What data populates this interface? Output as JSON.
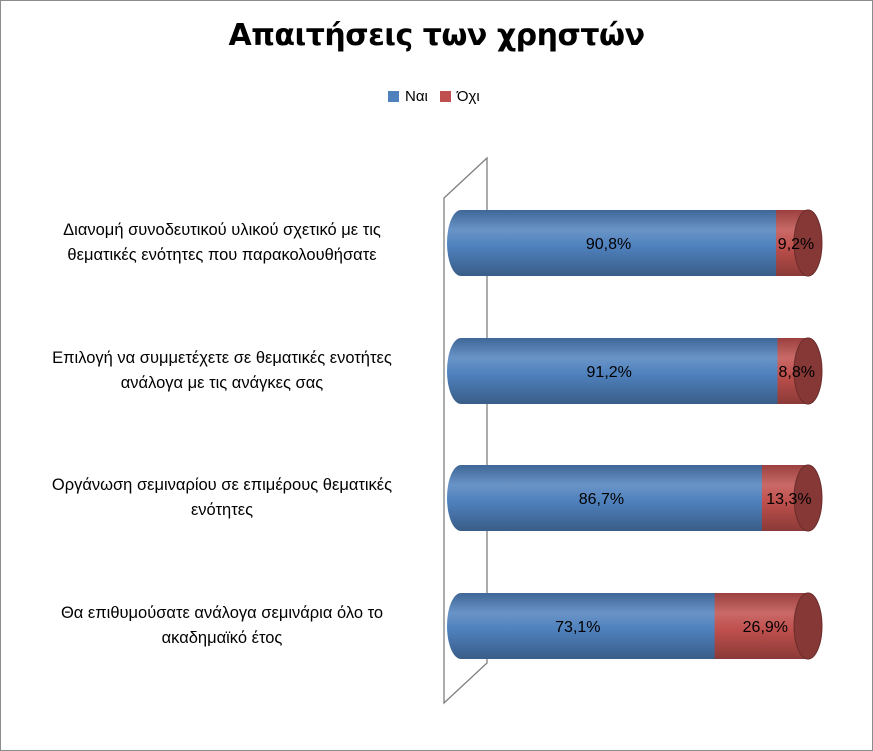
{
  "chart_data": {
    "type": "bar",
    "orientation": "horizontal",
    "stacked": true,
    "percent_stacked": true,
    "style": "3d-cylinder",
    "title": "Απαιτήσεις των χρηστών",
    "legend_position": "top",
    "categories": [
      "Διανομή συνοδευτικού υλικού σχετικό με τις θεματικές ενότητες που παρακολουθήσατε",
      "Επιλογή να συμμετέχετε σε θεματικές ενοτήτες ανάλογα με τις ανάγκες σας",
      "Οργάνωση σεμιναρίου σε επιμέρους θεματικές ενότητες",
      "Θα επιθυμούσατε ανάλογα σεμινάρια όλο το ακαδημαϊκό έτος"
    ],
    "category_lines": [
      [
        "Διανομή συνοδευτικού υλικού σχετικό με τις",
        "θεματικές ενότητες που παρακολουθήσατε"
      ],
      [
        "Επιλογή να συμμετέχετε σε θεματικές ενοτήτες",
        "ανάλογα με τις ανάγκες σας"
      ],
      [
        "Οργάνωση σεμιναρίου σε επιμέρους θεματικές",
        "ενότητες"
      ],
      [
        "Θα επιθυμούσατε ανάλογα σεμινάρια όλο το",
        "ακαδημαϊκό έτος"
      ]
    ],
    "series": [
      {
        "name": "Ναι",
        "color": "#4f81bd",
        "values": [
          90.8,
          91.2,
          86.7,
          73.1
        ],
        "labels": [
          "90,8%",
          "91,2%",
          "86,7%",
          "73,1%"
        ]
      },
      {
        "name": "Όχι",
        "color": "#c0504d",
        "values": [
          9.2,
          8.8,
          13.3,
          26.9
        ],
        "labels": [
          "9,2%",
          "8,8%",
          "13,3%",
          "26,9%"
        ]
      }
    ],
    "xlim": [
      0,
      100
    ],
    "grid": false
  }
}
